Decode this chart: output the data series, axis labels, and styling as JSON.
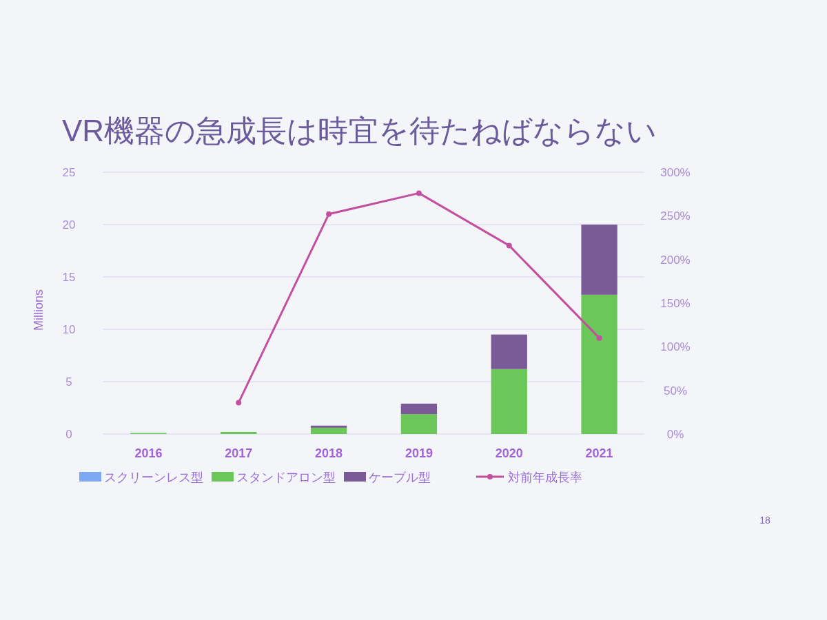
{
  "chart_data": {
    "type": "bar",
    "title": "VR機器の急成長は時宜を待たねばならない",
    "ylabel": "Millions",
    "categories": [
      "2016",
      "2017",
      "2018",
      "2019",
      "2020",
      "2021"
    ],
    "stacked": true,
    "series": [
      {
        "name": "スクリーンレス型",
        "color": "#7fa8f2",
        "values": [
          0,
          0,
          0,
          0,
          0,
          0
        ]
      },
      {
        "name": "スタンドアロン型",
        "color": "#6cc75a",
        "values": [
          0.1,
          0.2,
          0.6,
          1.9,
          6.2,
          13.3
        ]
      },
      {
        "name": "ケーブル型",
        "color": "#7b5a98",
        "values": [
          0,
          0,
          0.2,
          1.0,
          3.3,
          6.7
        ]
      },
      {
        "name": "対前年成長率",
        "type": "line",
        "axis": "y2",
        "color": "#c2509f",
        "values": [
          null,
          36,
          252,
          276,
          216,
          110
        ]
      }
    ],
    "ylim": [
      0,
      25
    ],
    "yticks": [
      0,
      5,
      10,
      15,
      20,
      25
    ],
    "y2lim": [
      0,
      300
    ],
    "y2ticks": [
      {
        "value": 0,
        "label": "0%"
      },
      {
        "value": 50,
        "label": "50%"
      },
      {
        "value": 100,
        "label": "100%"
      },
      {
        "value": 150,
        "label": "150%"
      },
      {
        "value": 200,
        "label": "200%"
      },
      {
        "value": 250,
        "label": "250%"
      },
      {
        "value": 300,
        "label": "300%"
      }
    ],
    "grid": "y",
    "legend": "bottom",
    "marker": "circle",
    "line_style": "solid",
    "annotations": [
      "18"
    ]
  }
}
